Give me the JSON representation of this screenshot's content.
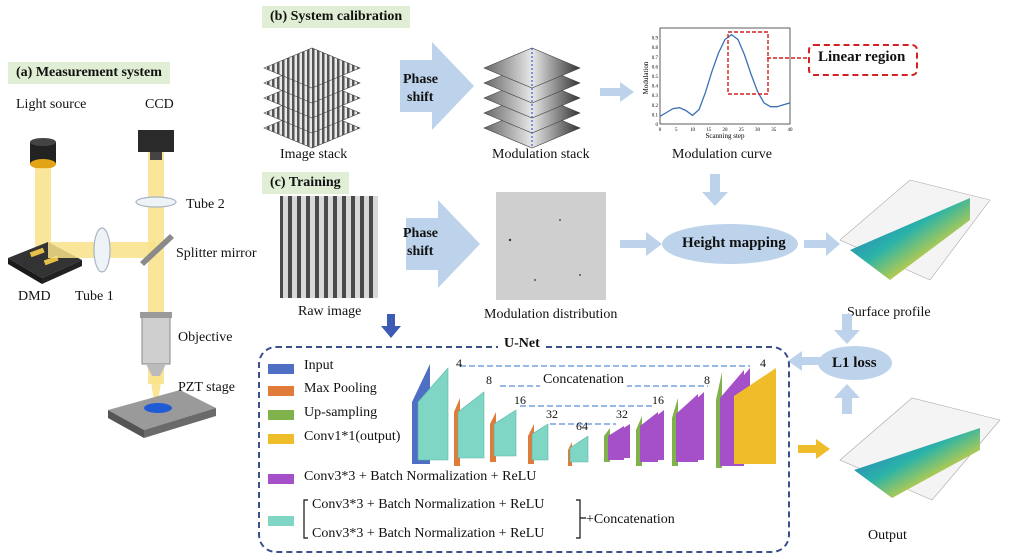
{
  "sections": {
    "measurement": "(a) Measurement system",
    "calibration": "(b) System calibration",
    "training": "(c) Training"
  },
  "measurement": {
    "light_source": "Light source",
    "ccd": "CCD",
    "tube2": "Tube 2",
    "splitter": "Splitter mirror",
    "dmd": "DMD",
    "tube1": "Tube 1",
    "objective": "Objective",
    "pzt": "PZT stage"
  },
  "calibration": {
    "phase_shift_a": "Phase",
    "phase_shift_b": "shift",
    "image_stack": "Image stack",
    "modulation_stack": "Modulation stack",
    "modulation_curve": "Modulation curve",
    "linear_region": "Linear region",
    "curve_xlabel": "Scanning step",
    "curve_ylabel": "Modulation"
  },
  "training": {
    "phase_shift_a": "Phase",
    "phase_shift_b": "shift",
    "raw_image": "Raw image",
    "modulation_distribution": "Modulation distribution",
    "height_mapping": "Height mapping",
    "surface_profile": "Surface profile",
    "l1_loss": "L1 loss",
    "output": "Output"
  },
  "unet": {
    "title": "U-Net",
    "concatenation": "Concatenation",
    "channels": [
      "4",
      "8",
      "16",
      "32",
      "64",
      "32",
      "16",
      "8",
      "4"
    ],
    "legend": {
      "input": "Input",
      "max_pooling": "Max Pooling",
      "up_sampling": "Up-sampling",
      "conv1": "Conv1*1(output)",
      "conv3_single": "Conv3*3 + Batch Normalization + ReLU",
      "conv3_double_1": "Conv3*3 + Batch Normalization + ReLU",
      "conv3_double_2": "Conv3*3 + Batch Normalization + ReLU",
      "plus_concat": "+Concatenation"
    }
  },
  "chart_data": {
    "type": "line",
    "xlabel": "Scanning step",
    "ylabel": "Modulation",
    "xlim": [
      0,
      40
    ],
    "ylim": [
      0,
      1
    ],
    "x_ticks": [
      "0",
      "5",
      "10",
      "15",
      "20",
      "25",
      "30",
      "35",
      "40"
    ],
    "y_ticks": [
      "0",
      "0.1",
      "0.2",
      "0.3",
      "0.4",
      "0.5",
      "0.6",
      "0.7",
      "0.8",
      "0.9"
    ],
    "series": [
      {
        "x": [
          0,
          2,
          4,
          6,
          8,
          10,
          12,
          14,
          16,
          18,
          20,
          22,
          24,
          26,
          28,
          30,
          32,
          34,
          36,
          38,
          40
        ],
        "y": [
          0.08,
          0.12,
          0.16,
          0.17,
          0.14,
          0.09,
          0.15,
          0.33,
          0.55,
          0.74,
          0.88,
          0.93,
          0.88,
          0.72,
          0.52,
          0.34,
          0.22,
          0.18,
          0.18,
          0.2,
          0.22
        ]
      }
    ]
  },
  "colors": {
    "input": "#4f6fc4",
    "max_pooling": "#e07b39",
    "up_sampling": "#7fb24a",
    "conv1": "#f0bd2a",
    "conv3_single": "#a54fc8",
    "conv3_double": "#7fd6c4",
    "arrow": "#bcd3eb",
    "box_dash": "#3b4f8c",
    "red": "#d32020"
  }
}
